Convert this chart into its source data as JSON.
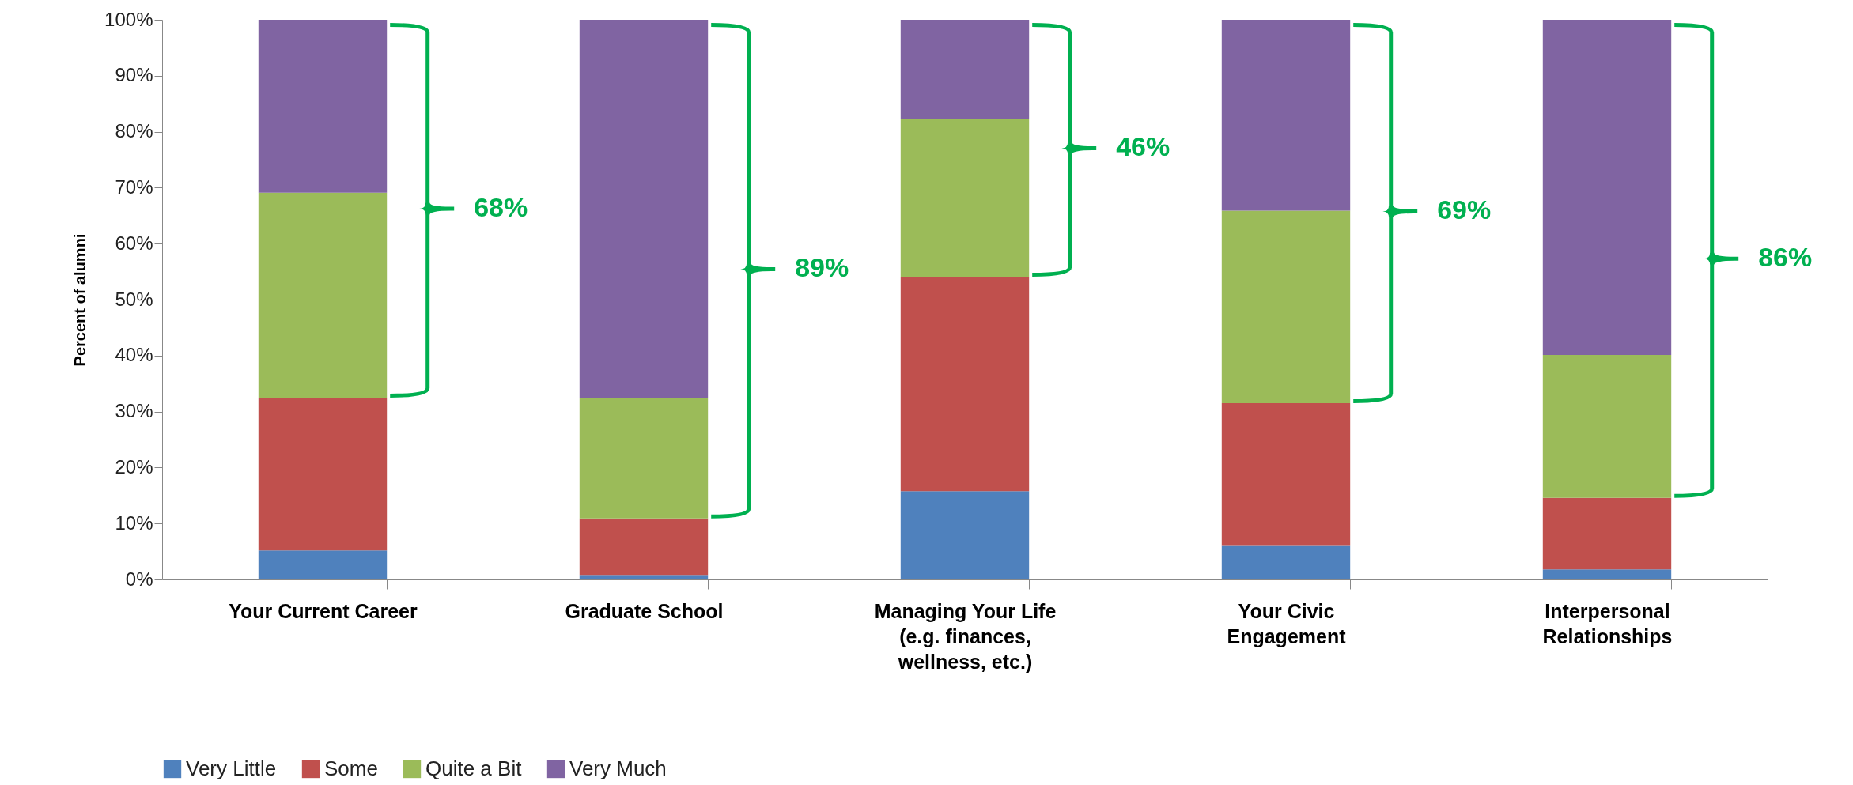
{
  "chart_data": {
    "type": "bar",
    "stacked": true,
    "ylabel": "Percent of alumni",
    "categories": [
      "Your Current Career",
      "Graduate School",
      "Managing Your Life (e.g. finances, wellness, etc.)",
      "Your Civic Engagement",
      "Interpersonal Relationships"
    ],
    "series": [
      {
        "name": "Very Little",
        "color": "#4f81bd",
        "values": [
          5.2,
          0.8,
          15.8,
          6.0,
          1.8
        ]
      },
      {
        "name": "Some",
        "color": "#c0504d",
        "values": [
          27.3,
          10.1,
          38.3,
          25.5,
          12.8
        ]
      },
      {
        "name": "Quite a Bit",
        "color": "#9bbb59",
        "values": [
          36.6,
          21.6,
          28.1,
          34.4,
          25.5
        ]
      },
      {
        "name": "Very Much",
        "color": "#8064a2",
        "values": [
          30.9,
          67.5,
          17.8,
          34.1,
          59.9
        ]
      }
    ],
    "ylim": [
      0,
      100
    ],
    "yticks": [
      {
        "value": 0,
        "label": "0%"
      },
      {
        "value": 10,
        "label": "10%"
      },
      {
        "value": 20,
        "label": "20%"
      },
      {
        "value": 30,
        "label": "30%"
      },
      {
        "value": 40,
        "label": "40%"
      },
      {
        "value": 50,
        "label": "50%"
      },
      {
        "value": 60,
        "label": "60%"
      },
      {
        "value": 70,
        "label": "70%"
      },
      {
        "value": 80,
        "label": "80%"
      },
      {
        "value": 90,
        "label": "90%"
      },
      {
        "value": 100,
        "label": "100%"
      }
    ],
    "annotations": [
      "68%",
      "89%",
      "46%",
      "69%",
      "86%"
    ],
    "grid": false,
    "legend": "bottom"
  }
}
